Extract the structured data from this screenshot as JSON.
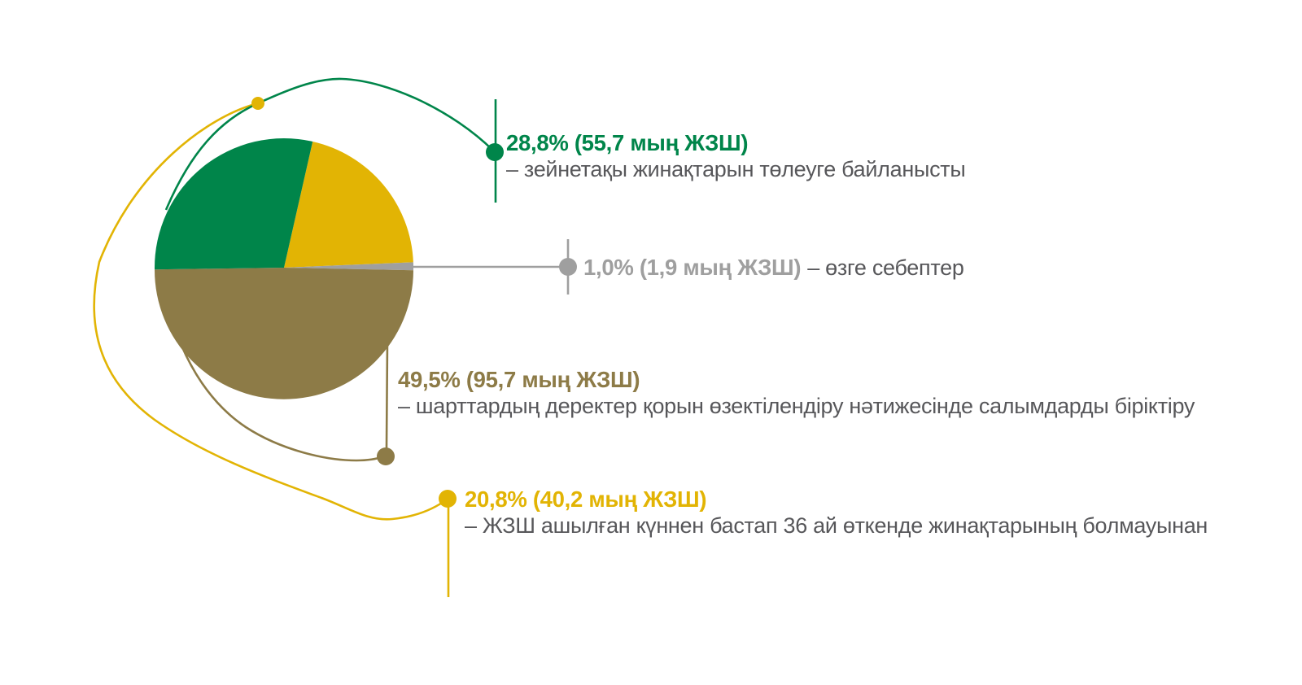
{
  "page": {
    "background": "#ffffff",
    "text_color": "#57575a"
  },
  "chart_data": {
    "type": "pie",
    "title": "",
    "legend_position": "right-callouts",
    "start_angle_deg": 12.8,
    "draw_order": [
      3,
      1,
      2,
      0
    ],
    "slices": [
      {
        "id": "pension-payouts",
        "pct": 28.8,
        "pct_label": "28,8%",
        "amount_label": "55,7 мың ЖЗШ",
        "headline": "28,8% (55,7 мың ЖЗШ)",
        "description": "– зейнетақы жинақтарын төлеуге байланысты",
        "color": "#00854a"
      },
      {
        "id": "other-reasons",
        "pct": 1.0,
        "pct_label": "1,0%",
        "amount_label": "1,9 мың ЖЗШ",
        "headline": "1,0% (1,9 мың ЖЗШ)",
        "description": "– өзге себептер",
        "color": "#9f9f9f"
      },
      {
        "id": "deposit-consolidation",
        "pct": 49.5,
        "pct_label": "49,5%",
        "amount_label": "95,7 мың ЖЗШ",
        "headline": "49,5% (95,7 мың ЖЗШ)",
        "description": "– шарттардың деректер қорын өзектілендіру нәтижесінде салымдарды біріктіру",
        "color": "#8d7b47"
      },
      {
        "id": "no-savings-36-months",
        "pct": 20.8,
        "pct_label": "20,8%",
        "amount_label": "40,2 мың ЖЗШ",
        "headline": "20,8% (40,2 мың ЖЗШ)",
        "description": "– ЖЗШ ашылған күннен бастап 36 ай өткенде жинақтарының болмауынан",
        "color": "#e2b404"
      }
    ]
  }
}
